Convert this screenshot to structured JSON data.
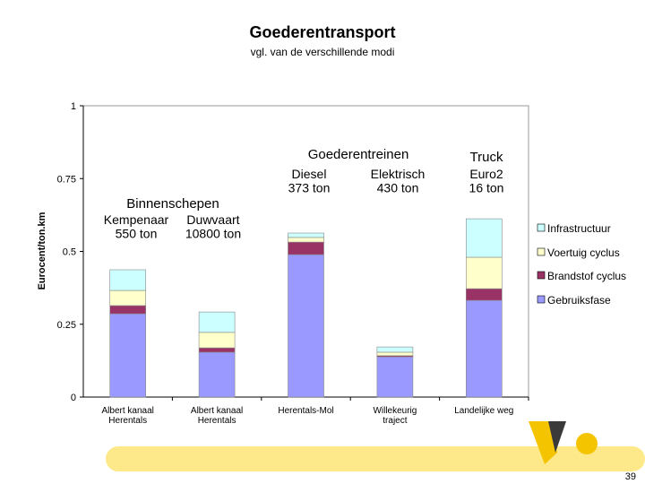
{
  "chart_data": {
    "type": "stacked_bar",
    "title": "Goederentransport",
    "subtitle": "vgl. van de verschillende modi",
    "y_label": "Eurocent/ton.km",
    "categories": [
      "Albert kanaal\nHerentals",
      "Albert kanaal\nHerentals",
      "Herentals-Mol",
      "Willekeurig\ntraject",
      "Landelijke weg"
    ],
    "series": [
      {
        "name": "Gebruiksfase",
        "color": "#9999ff",
        "values": [
          0.286,
          0.154,
          0.489,
          0.138,
          0.332
        ]
      },
      {
        "name": "Brandstof cyclus",
        "color": "#993366",
        "values": [
          0.028,
          0.015,
          0.043,
          0.004,
          0.04
        ]
      },
      {
        "name": "Voertuig cyclus",
        "color": "#ffffcc",
        "values": [
          0.052,
          0.053,
          0.016,
          0.012,
          0.108
        ]
      },
      {
        "name": "Infrastructuur",
        "color": "#ccffff",
        "values": [
          0.071,
          0.07,
          0.015,
          0.018,
          0.132
        ]
      }
    ],
    "ylim": [
      0,
      1
    ],
    "yticks": [
      0,
      0.25,
      0.5,
      0.75,
      1
    ],
    "legend": "right",
    "annotations": [
      "Binnenschepen",
      "Kempenaar\n550 ton",
      "Duwvaart\n10800 ton",
      "Goederentreinen",
      "Diesel\n373 ton",
      "Elektrisch\n430 ton",
      "Truck",
      "Euro2\n16 ton"
    ],
    "page_number": "39"
  }
}
